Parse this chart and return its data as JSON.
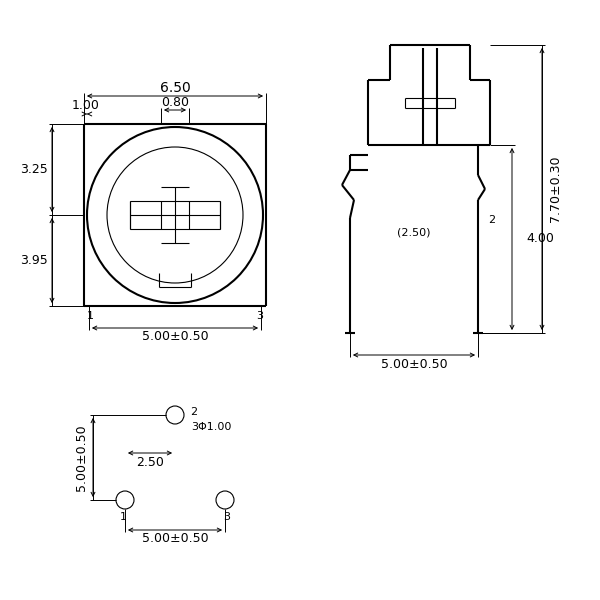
{
  "bg_color": "#ffffff",
  "line_color": "#000000",
  "lw": 1.5,
  "tlw": 0.8,
  "dlw": 0.7,
  "fs": 9,
  "annotations": {
    "d_6_50": "6.50",
    "d_0_80": "0.80",
    "d_1_00": "1.00",
    "d_3_25": "3.25",
    "d_3_95": "3.95",
    "d_5pm": "5.00±0.50",
    "d_2_50": "2.50",
    "d_3phi": "3Φ1.00",
    "d_7_70": "7.70±0.30",
    "d_4_00": "4.00",
    "d_2_50p": "(2.50)"
  }
}
